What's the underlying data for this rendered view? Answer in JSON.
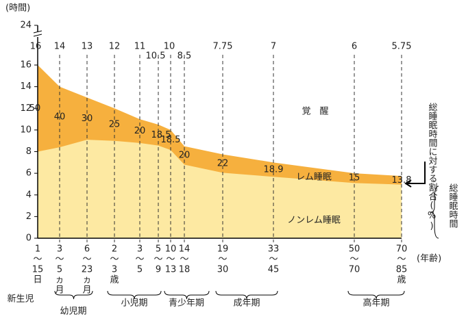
{
  "chart_data": {
    "type": "area",
    "y_label": "(時間)",
    "x_label": "(年齢)",
    "categories": [
      [
        "1",
        "～",
        "15",
        "日"
      ],
      [
        "3",
        "～",
        "5",
        "ヵ",
        "月"
      ],
      [
        "6",
        "～",
        "23",
        "ヵ",
        "月"
      ],
      [
        "2",
        "～",
        "3",
        "歳"
      ],
      [
        "3",
        "～",
        "5"
      ],
      [
        "5",
        "～",
        "9"
      ],
      [
        "10",
        "～",
        "13"
      ],
      [
        "14",
        "～",
        "18"
      ],
      [
        "19",
        "～",
        "30"
      ],
      [
        "33",
        "～",
        "45"
      ],
      [
        "50",
        "～",
        "70"
      ],
      [
        "70",
        "～",
        "85",
        "歳"
      ]
    ],
    "total_hours": [
      16,
      14,
      13,
      12,
      11,
      10.5,
      10,
      8.5,
      7.75,
      7,
      6,
      5.75
    ],
    "rem_percent": [
      50,
      40,
      30,
      25,
      20,
      18.5,
      18.5,
      20,
      22,
      18.9,
      15,
      13.8
    ],
    "regions": {
      "wake": "覚　醒",
      "rem": "レム睡眠",
      "nonrem": "ノンレム睡眠"
    },
    "colors": {
      "rem": "#f6b03e",
      "nonrem": "#fde9a2"
    },
    "ylim": [
      0,
      16
    ],
    "yticks": [
      0,
      2,
      4,
      6,
      8,
      10,
      12,
      14,
      16
    ],
    "y_break_tick": 24,
    "right_labels": {
      "percent": "総睡眠時間に対する割合(%)",
      "total": "総睡眠時間"
    },
    "age_groups": [
      "新生児",
      "幼児期",
      "小児期",
      "青少年期",
      "成年期",
      "高年期"
    ]
  }
}
